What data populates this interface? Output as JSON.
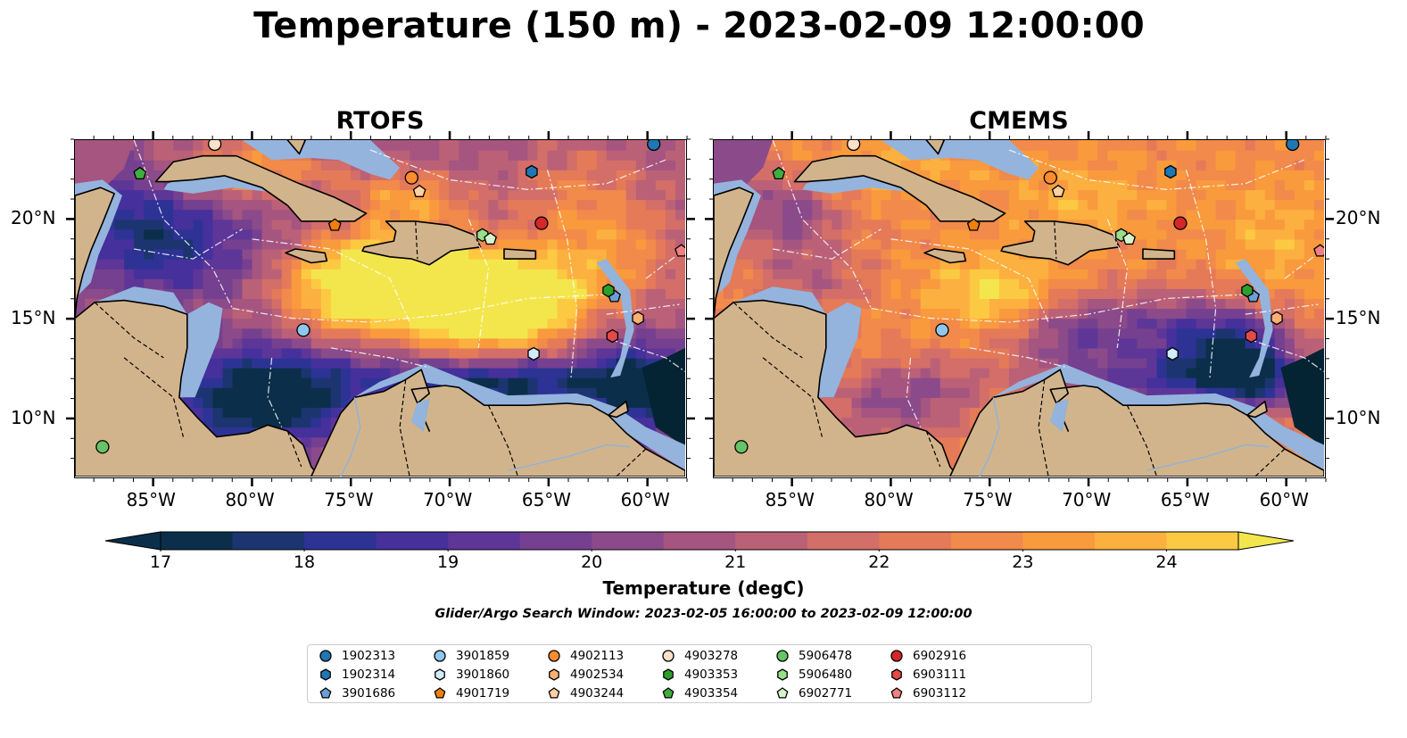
{
  "title": "Temperature (150 m) - 2023-02-09 12:00:00",
  "panels": [
    {
      "title": "RTOFS"
    },
    {
      "title": "CMEMS"
    }
  ],
  "map": {
    "lon_range": [
      -89,
      -58
    ],
    "lat_range": [
      7,
      24
    ],
    "lon_ticks": [
      "85°W",
      "80°W",
      "75°W",
      "70°W",
      "65°W",
      "60°W"
    ],
    "lat_ticks": [
      "20°N",
      "15°N",
      "10°N"
    ],
    "colors": {
      "land": "#d2b48c",
      "shelf": "#94b4de",
      "ocean_deep": "#042333"
    }
  },
  "colorbar": {
    "label": "Temperature (degC)",
    "ticks": [
      "17",
      "18",
      "19",
      "20",
      "21",
      "22",
      "23",
      "24"
    ],
    "range": [
      17,
      24.5
    ],
    "colors": [
      "#0b2f4a",
      "#1c3570",
      "#2d3395",
      "#46309c",
      "#5d3698",
      "#75408f",
      "#8b4a8a",
      "#a5557f",
      "#bb6177",
      "#d36e68",
      "#e57a58",
      "#f18a4a",
      "#f99a3d",
      "#fcb03f",
      "#fcc942",
      "#f3e64d"
    ]
  },
  "search_window": "Glider/Argo Search Window: 2023-02-05 16:00:00 to 2023-02-09 12:00:00",
  "legend": {
    "items": [
      {
        "label": "1902313",
        "color": "#1f77b4",
        "marker": "circle"
      },
      {
        "label": "1902314",
        "color": "#1f77b4",
        "marker": "hexagon"
      },
      {
        "label": "3901686",
        "color": "#6a9fd8",
        "marker": "pentagon"
      },
      {
        "label": "3901859",
        "color": "#8fc7ec",
        "marker": "circle"
      },
      {
        "label": "3901860",
        "color": "#d3ecfa",
        "marker": "hexagon"
      },
      {
        "label": "4901719",
        "color": "#f07f0c",
        "marker": "pentagon"
      },
      {
        "label": "4902113",
        "color": "#ff8c2e",
        "marker": "circle"
      },
      {
        "label": "4902534",
        "color": "#ffb070",
        "marker": "hexagon"
      },
      {
        "label": "4903244",
        "color": "#ffd0a0",
        "marker": "pentagon"
      },
      {
        "label": "4903278",
        "color": "#fde0c8",
        "marker": "circle"
      },
      {
        "label": "4903353",
        "color": "#2ca02c",
        "marker": "hexagon"
      },
      {
        "label": "4903354",
        "color": "#3fae3f",
        "marker": "pentagon"
      },
      {
        "label": "5906478",
        "color": "#66c466",
        "marker": "circle"
      },
      {
        "label": "5906480",
        "color": "#98df8a",
        "marker": "hexagon"
      },
      {
        "label": "6902771",
        "color": "#d4f4cc",
        "marker": "pentagon"
      },
      {
        "label": "6902916",
        "color": "#d62728",
        "marker": "circle"
      },
      {
        "label": "6903111",
        "color": "#e34a4a",
        "marker": "hexagon"
      },
      {
        "label": "6903112",
        "color": "#f28080",
        "marker": "pentagon"
      }
    ]
  },
  "floats": [
    {
      "id": "1902313",
      "lon": -59.6,
      "lat": 23.8
    },
    {
      "id": "1902314",
      "lon": -65.8,
      "lat": 22.4
    },
    {
      "id": "3901686",
      "lon": -61.6,
      "lat": 16.1
    },
    {
      "id": "3901859",
      "lon": -77.4,
      "lat": 14.4
    },
    {
      "id": "3901860",
      "lon": -65.7,
      "lat": 13.2
    },
    {
      "id": "4901719",
      "lon": -75.8,
      "lat": 19.7
    },
    {
      "id": "4902113",
      "lon": -71.9,
      "lat": 22.1
    },
    {
      "id": "4902534",
      "lon": -60.4,
      "lat": 15.0
    },
    {
      "id": "4903244",
      "lon": -71.5,
      "lat": 21.4
    },
    {
      "id": "4903278",
      "lon": -81.9,
      "lat": 23.8
    },
    {
      "id": "4903353",
      "lon": -61.9,
      "lat": 16.4
    },
    {
      "id": "4903354",
      "lon": -85.7,
      "lat": 22.3
    },
    {
      "id": "5906478",
      "lon": -87.6,
      "lat": 8.5
    },
    {
      "id": "5906480",
      "lon": -68.3,
      "lat": 19.2
    },
    {
      "id": "6902771",
      "lon": -67.9,
      "lat": 19.0
    },
    {
      "id": "6902916",
      "lon": -65.3,
      "lat": 19.8
    },
    {
      "id": "6903111",
      "lon": -61.7,
      "lat": 14.1
    },
    {
      "id": "6903112",
      "lon": -58.2,
      "lat": 18.4
    }
  ]
}
